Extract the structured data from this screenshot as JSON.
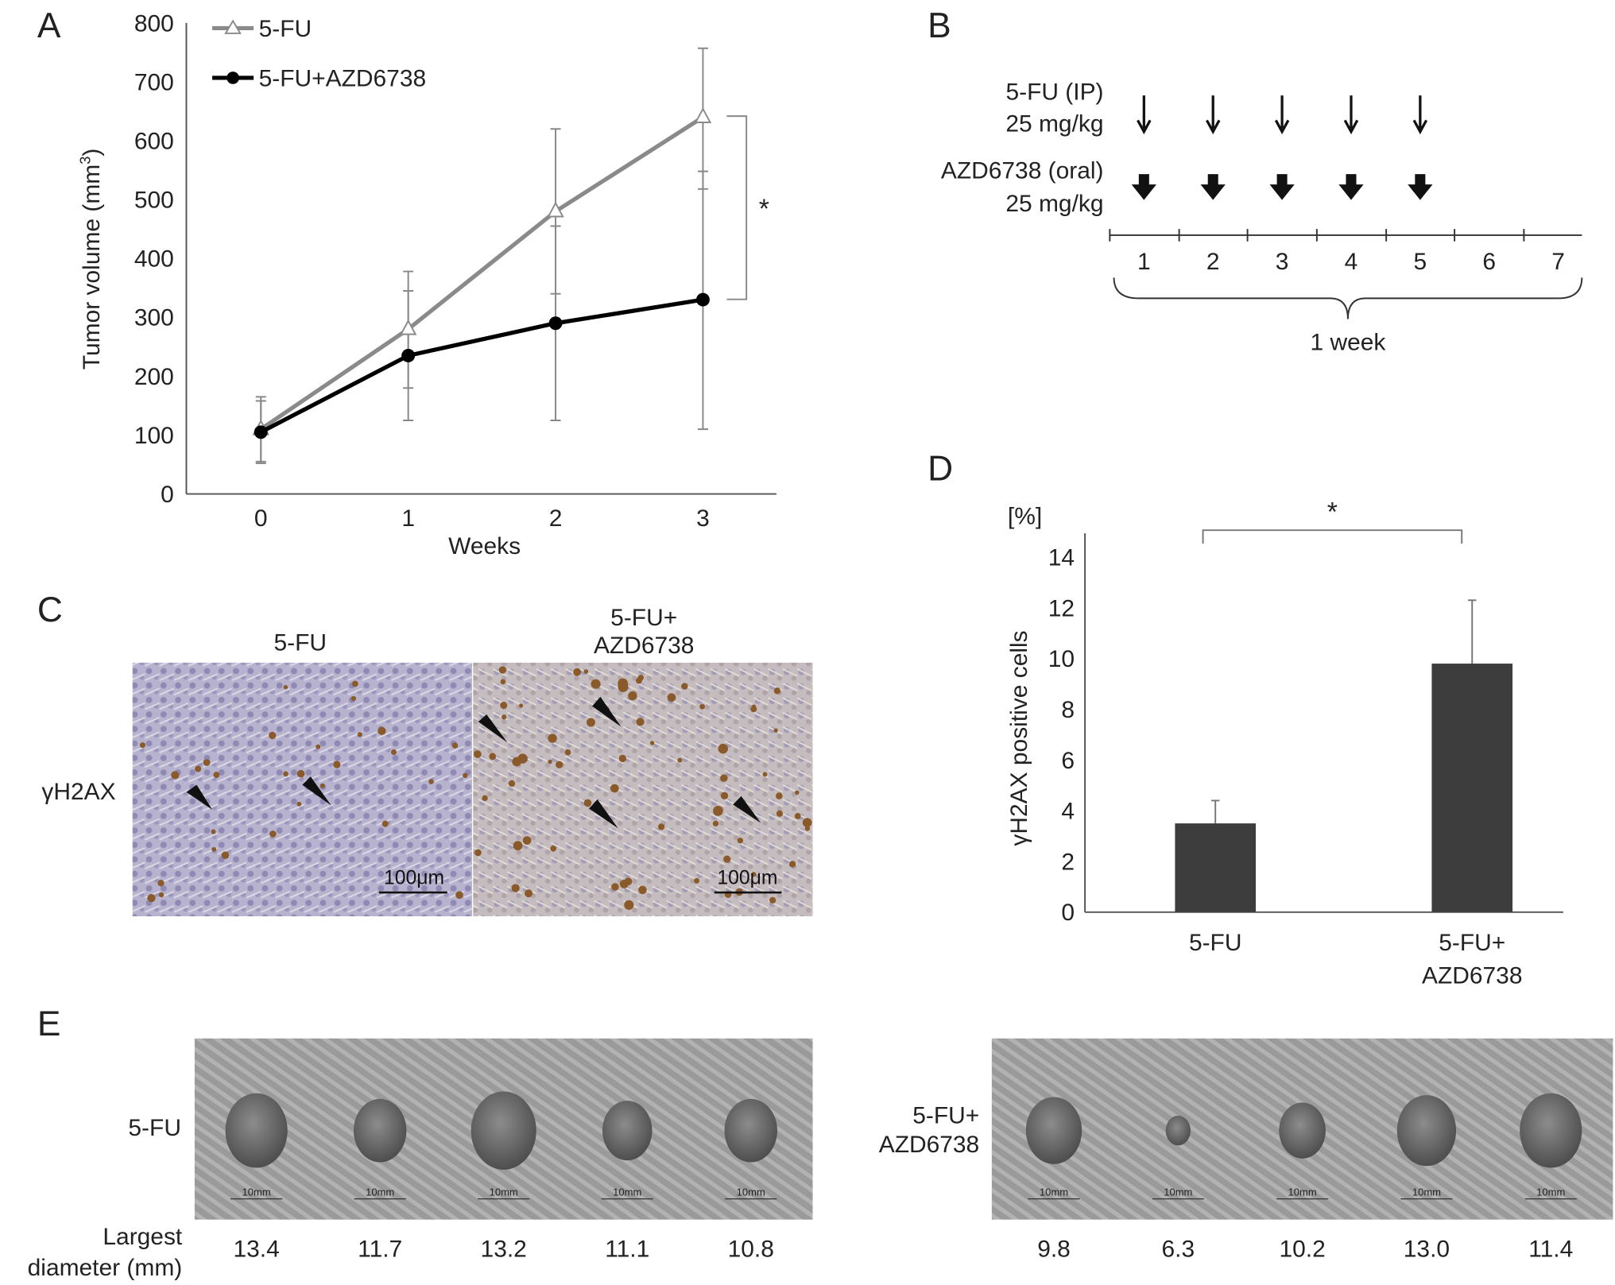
{
  "panels": {
    "a": "A",
    "b": "B",
    "c": "C",
    "d": "D",
    "e": "E"
  },
  "chart_data": [
    {
      "type": "line",
      "panel": "A",
      "xlabel": "Weeks",
      "ylabel": "Tumor volume (mm",
      "ylabel_sup": "3",
      "ylabel_close": ")",
      "x": [
        0,
        1,
        2,
        3
      ],
      "ylim": [
        0,
        800
      ],
      "yticks": [
        0,
        100,
        200,
        300,
        400,
        500,
        600,
        700,
        800
      ],
      "legend_position": "top-left",
      "series": [
        {
          "name": "5-FU",
          "color": "#8a8a8a",
          "marker": "open-triangle",
          "values": [
            110,
            280,
            480,
            640
          ],
          "err_upper": [
            165,
            378,
            620,
            757
          ],
          "err_lower": [
            55,
            180,
            340,
            518
          ]
        },
        {
          "name": "5-FU+AZD6738",
          "color": "#000000",
          "marker": "filled-circle",
          "values": [
            105,
            235,
            290,
            330
          ],
          "err_upper": [
            158,
            345,
            455,
            548
          ],
          "err_lower": [
            52,
            125,
            125,
            110
          ]
        }
      ],
      "annotation": "*"
    },
    {
      "type": "bar",
      "panel": "D",
      "unit_label": "[%]",
      "ylabel": "γH2AX positive cells",
      "categories": [
        [
          "5-FU"
        ],
        [
          "5-FU+",
          "AZD6738"
        ]
      ],
      "values": [
        3.5,
        9.8
      ],
      "err_upper": [
        4.4,
        12.3
      ],
      "ylim": [
        0,
        14
      ],
      "yticks": [
        0,
        2,
        4,
        6,
        8,
        10,
        12,
        14
      ],
      "bar_color": "#3d3d3d",
      "annotation": "*"
    }
  ],
  "schedule": {
    "drug1": [
      "5-FU (IP)",
      "25 mg/kg"
    ],
    "drug2": [
      "AZD6738 (oral)",
      "25 mg/kg"
    ],
    "days": [
      "1",
      "2",
      "3",
      "4",
      "5",
      "6",
      "7"
    ],
    "dosing_days": 5,
    "span_label": "1 week"
  },
  "histology": {
    "titles": [
      [
        "5-FU"
      ],
      [
        "5-FU+",
        "AZD6738"
      ]
    ],
    "row_label": "γH2AX",
    "scale_bar": "100μm"
  },
  "tumors": {
    "groups": [
      {
        "label": [
          "5-FU"
        ],
        "diameters": [
          "13.4",
          "11.7",
          "13.2",
          "11.1",
          "10.8"
        ]
      },
      {
        "label": [
          "5-FU+",
          "AZD6738"
        ],
        "diameters": [
          "9.8",
          "6.3",
          "10.2",
          "13.0",
          "11.4"
        ]
      }
    ],
    "scale_bar": "10mm",
    "row_label": [
      "Largest",
      "diameter (mm)"
    ]
  }
}
